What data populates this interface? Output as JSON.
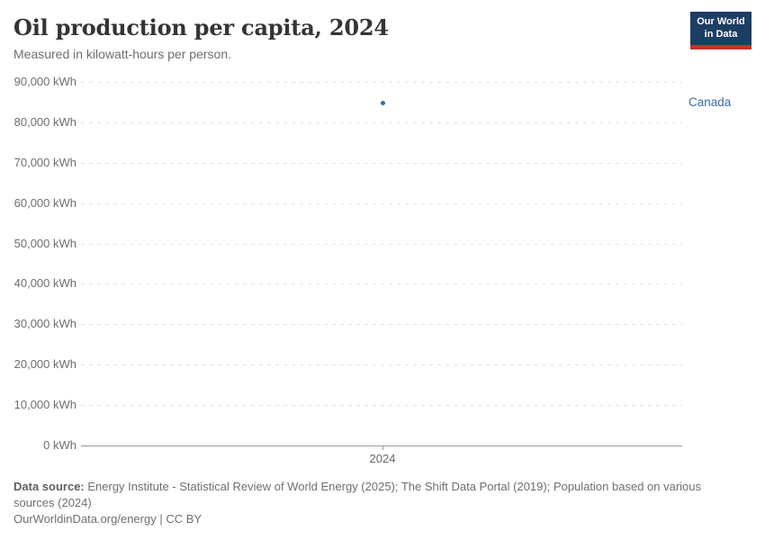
{
  "header": {
    "title": "Oil production per capita, 2024",
    "subtitle": "Measured in kilowatt-hours per person.",
    "logo": {
      "line1": "Our World",
      "line2": "in Data",
      "bg_color": "#1d3d63",
      "bar_color": "#c5332d"
    }
  },
  "chart_data": {
    "type": "scatter",
    "title": "Oil production per capita, 2024",
    "subtitle": "Measured in kilowatt-hours per person.",
    "unit": "kWh",
    "x_tick_labels": [
      "2024"
    ],
    "series": [
      {
        "name": "Canada",
        "x": 2024,
        "value": 84770,
        "color": "#3d6a9e"
      }
    ],
    "y_ticks": [
      {
        "value": 0,
        "label": "0 kWh"
      },
      {
        "value": 10000,
        "label": "10,000 kWh"
      },
      {
        "value": 20000,
        "label": "20,000 kWh"
      },
      {
        "value": 30000,
        "label": "30,000 kWh"
      },
      {
        "value": 40000,
        "label": "40,000 kWh"
      },
      {
        "value": 50000,
        "label": "50,000 kWh"
      },
      {
        "value": 60000,
        "label": "60,000 kWh"
      },
      {
        "value": 70000,
        "label": "70,000 kWh"
      },
      {
        "value": 80000,
        "label": "80,000 kWh"
      },
      {
        "value": 90000,
        "label": "90,000 kWh"
      }
    ],
    "ylim": [
      0,
      90000
    ],
    "xlabel": "",
    "ylabel": "",
    "grid": "horizontal-dashed",
    "legend_position": "right-of-point"
  },
  "footer": {
    "data_source_label": "Data source:",
    "data_source_text": " Energy Institute - Statistical Review of World Energy (2025); The Shift Data Portal (2019); Population based on various sources (2024)",
    "license_line": "OurWorldinData.org/energy | CC BY"
  }
}
